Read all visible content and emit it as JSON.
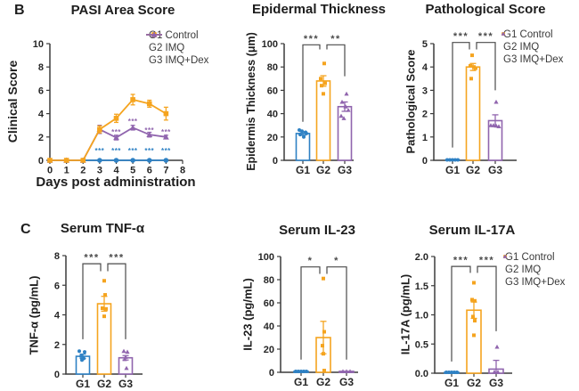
{
  "figure": {
    "background": "#ffffff",
    "panel_b_label": "B",
    "panel_c_label": "C"
  },
  "colors": {
    "g1": "#2E81C4",
    "g2": "#F5A41F",
    "g3": "#9065AE",
    "axis": "#3C3C3C",
    "text": "#262626",
    "bracket": "#4A4A4A"
  },
  "group_names": [
    "G1 Control",
    "G2 IMQ",
    "G3 IMQ+Dex"
  ],
  "chart_data": [
    {
      "id": "pasi_area_score",
      "type": "line",
      "title": "PASI Area Score",
      "xlabel": "Days post administration",
      "ylabel": "Clinical Score",
      "xlim": [
        0,
        8
      ],
      "xticks": [
        "0",
        "1",
        "2",
        "3",
        "4",
        "5",
        "6",
        "7",
        "8"
      ],
      "ylim": [
        0,
        10
      ],
      "yticks": [
        "0",
        "2",
        "4",
        "6",
        "8",
        "10"
      ],
      "legend_position": "top-right",
      "legend": [
        {
          "label": "G1 Control",
          "color": "g1",
          "marker": "circle"
        },
        {
          "label": "G2 IMQ",
          "color": "g2",
          "marker": "square"
        },
        {
          "label": "G3 IMQ+Dex",
          "color": "g3",
          "marker": "triangle"
        }
      ],
      "series": [
        {
          "name": "G1 Control",
          "color": "g1",
          "marker": "circle",
          "x": [
            0,
            1,
            2,
            3,
            4,
            5,
            6,
            7
          ],
          "y": [
            0,
            0,
            0,
            0,
            0,
            0,
            0,
            0
          ],
          "err": [
            0,
            0,
            0,
            0,
            0,
            0,
            0,
            0
          ]
        },
        {
          "name": "G3 IMQ+Dex",
          "color": "g3",
          "marker": "triangle",
          "x": [
            0,
            1,
            2,
            3,
            4,
            5,
            6,
            7
          ],
          "y": [
            0,
            0,
            0,
            2.65,
            1.95,
            2.8,
            2.2,
            2.0
          ],
          "err": [
            0,
            0,
            0,
            0.35,
            0.2,
            0.2,
            0.2,
            0.15
          ]
        },
        {
          "name": "G2 IMQ",
          "color": "g2",
          "marker": "square",
          "x": [
            0,
            1,
            2,
            3,
            4,
            5,
            6,
            7
          ],
          "y": [
            0,
            0,
            0,
            2.65,
            3.6,
            5.2,
            4.85,
            4.0
          ],
          "err": [
            0,
            0,
            0,
            0.3,
            0.35,
            0.45,
            0.3,
            0.55
          ]
        }
      ],
      "annotations": [
        {
          "text": "***",
          "color": "g3",
          "x": 4,
          "y": 2.45
        },
        {
          "text": "***",
          "color": "g3",
          "x": 5,
          "y": 3.35
        },
        {
          "text": "***",
          "color": "g3",
          "x": 6,
          "y": 2.6
        },
        {
          "text": "***",
          "color": "g3",
          "x": 7,
          "y": 2.45
        },
        {
          "text": "***",
          "color": "g1",
          "x": 3,
          "y": 0.85
        },
        {
          "text": "***",
          "color": "g1",
          "x": 4,
          "y": 0.85
        },
        {
          "text": "***",
          "color": "g1",
          "x": 5,
          "y": 0.85
        },
        {
          "text": "***",
          "color": "g1",
          "x": 6,
          "y": 0.85
        },
        {
          "text": "***",
          "color": "g1",
          "x": 7,
          "y": 0.85
        }
      ]
    },
    {
      "id": "epidermal_thickness",
      "type": "bar",
      "title": "Epidermal Thickness",
      "ylabel": "Epidermis Thickness (μm)",
      "ylim": [
        0,
        100
      ],
      "yticks": [
        "0",
        "20",
        "40",
        "60",
        "80",
        "100"
      ],
      "categories": [
        "G1",
        "G2",
        "G3"
      ],
      "bars": [
        {
          "group": "G1",
          "color": "g1",
          "marker": "circle",
          "value": 23,
          "err": 1.5,
          "points": [
            [
              -4,
              26
            ],
            [
              -1,
              25
            ],
            [
              3,
              24
            ],
            [
              -3,
              22
            ],
            [
              1,
              20
            ],
            [
              4,
              23
            ]
          ]
        },
        {
          "group": "G2",
          "color": "g2",
          "marker": "square",
          "value": 68,
          "err": 4.5,
          "points": [
            [
              1,
              83
            ],
            [
              -3,
              70
            ],
            [
              2,
              66
            ],
            [
              -2,
              64
            ],
            [
              0,
              57
            ]
          ]
        },
        {
          "group": "G3",
          "color": "g3",
          "marker": "triangle",
          "value": 46,
          "err": 4,
          "points": [
            [
              2,
              57
            ],
            [
              -3,
              50
            ],
            [
              1,
              46
            ],
            [
              4,
              43
            ],
            [
              -4,
              38
            ],
            [
              -1,
              36
            ]
          ]
        }
      ],
      "brackets": [
        {
          "x1": 0,
          "x2": 1,
          "top": 99,
          "y1": 33,
          "y2": 95,
          "label": "***"
        },
        {
          "x1": 1,
          "x2": 2,
          "top": 99,
          "y1": 95,
          "y2": 72,
          "label": "**"
        }
      ]
    },
    {
      "id": "pathological_score",
      "type": "bar",
      "title": "Pathological Score",
      "ylabel": "Pathological Score",
      "ylim": [
        0,
        5
      ],
      "yticks": [
        "0",
        "1",
        "2",
        "3",
        "4",
        "5"
      ],
      "categories": [
        "G1",
        "G2",
        "G3"
      ],
      "legend_position": "right",
      "legend": [
        {
          "label": "G1 Control",
          "color": "g1",
          "marker": "circle"
        },
        {
          "label": "G2 IMQ",
          "color": "g2",
          "marker": "square"
        },
        {
          "label": "G3 IMQ+Dex",
          "color": "g3",
          "marker": "triangle"
        }
      ],
      "bars": [
        {
          "group": "G1",
          "color": "g1",
          "marker": "circle",
          "value": 0.02,
          "err": 0,
          "points": [
            [
              -6,
              0.02
            ],
            [
              -3,
              0.02
            ],
            [
              0,
              0.02
            ],
            [
              3,
              0.02
            ],
            [
              6,
              0.02
            ]
          ]
        },
        {
          "group": "G2",
          "color": "g2",
          "marker": "square",
          "value": 4.0,
          "err": 0.15,
          "points": [
            [
              -1,
              4.5
            ],
            [
              -3,
              4.05
            ],
            [
              1,
              4.0
            ],
            [
              3,
              3.95
            ],
            [
              -2,
              3.5
            ]
          ]
        },
        {
          "group": "G3",
          "color": "g3",
          "marker": "triangle",
          "value": 1.7,
          "err": 0.25,
          "points": [
            [
              1,
              2.5
            ],
            [
              -5,
              1.5
            ],
            [
              -2,
              1.5
            ],
            [
              1,
              1.48
            ],
            [
              4,
              1.45
            ]
          ]
        }
      ],
      "brackets": [
        {
          "x1": 0,
          "x2": 1,
          "top": 5.05,
          "y1": 0.55,
          "y2": 4.75,
          "label": "***"
        },
        {
          "x1": 1,
          "x2": 2,
          "top": 5.05,
          "y1": 4.75,
          "y2": 3.0,
          "label": "***"
        }
      ]
    },
    {
      "id": "serum_tnf_alpha",
      "type": "bar",
      "title": "Serum TNF-α",
      "ylabel": "TNF-α (pg/mL)",
      "ylim": [
        0,
        8
      ],
      "yticks": [
        "0",
        "2",
        "4",
        "6",
        "8"
      ],
      "categories": [
        "G1",
        "G2",
        "G3"
      ],
      "bars": [
        {
          "group": "G1",
          "color": "g1",
          "marker": "circle",
          "value": 1.2,
          "err": 0.15,
          "points": [
            [
              -4,
              1.55
            ],
            [
              2,
              1.5
            ],
            [
              -2,
              1.2
            ],
            [
              1,
              1.05
            ],
            [
              -1,
              0.95
            ]
          ]
        },
        {
          "group": "G2",
          "color": "g2",
          "marker": "square",
          "value": 4.75,
          "err": 0.5,
          "points": [
            [
              0,
              6.3
            ],
            [
              1,
              5.35
            ],
            [
              -2,
              4.45
            ],
            [
              2,
              4.4
            ],
            [
              0,
              3.9
            ]
          ]
        },
        {
          "group": "G3",
          "color": "g3",
          "marker": "triangle",
          "value": 1.1,
          "err": 0.15,
          "points": [
            [
              -2,
              1.55
            ],
            [
              2,
              1.5
            ],
            [
              0,
              1.15
            ],
            [
              -1,
              1.0
            ],
            [
              1,
              0.4
            ]
          ]
        }
      ],
      "brackets": [
        {
          "x1": 0,
          "x2": 1,
          "top": 7.45,
          "y1": 2.35,
          "y2": 6.95,
          "label": "***"
        },
        {
          "x1": 1,
          "x2": 2,
          "top": 7.45,
          "y1": 6.95,
          "y2": 2.35,
          "label": "***"
        }
      ]
    },
    {
      "id": "serum_il23",
      "type": "bar",
      "title": "Serum IL-23",
      "ylabel": "IL-23 (pg/mL)",
      "ylim": [
        0,
        100
      ],
      "yticks": [
        "0",
        "20",
        "40",
        "60",
        "80",
        "100"
      ],
      "categories": [
        "G1",
        "G2",
        "G3"
      ],
      "bars": [
        {
          "group": "G1",
          "color": "g1",
          "marker": "circle",
          "value": 0.8,
          "err": 0,
          "points": [
            [
              -6,
              0.8
            ],
            [
              -3,
              0.8
            ],
            [
              0,
              0.8
            ],
            [
              3,
              0.8
            ],
            [
              6,
              0.8
            ]
          ]
        },
        {
          "group": "G2",
          "color": "g2",
          "marker": "square",
          "value": 30,
          "err": 14,
          "points": [
            [
              0,
              81
            ],
            [
              1,
              35
            ],
            [
              -1,
              23
            ],
            [
              0,
              16
            ],
            [
              1,
              1.5
            ]
          ]
        },
        {
          "group": "G3",
          "color": "g3",
          "marker": "triangle",
          "value": 0.8,
          "err": 0,
          "points": [
            [
              -4,
              0.8
            ],
            [
              0,
              0.8
            ],
            [
              4,
              0.8
            ]
          ]
        }
      ],
      "brackets": [
        {
          "x1": 0,
          "x2": 1,
          "top": 91,
          "y1": 11,
          "y2": 85,
          "label": "*"
        },
        {
          "x1": 1,
          "x2": 2,
          "top": 91,
          "y1": 85,
          "y2": 11,
          "label": "*"
        }
      ]
    },
    {
      "id": "serum_il17a",
      "type": "bar",
      "title": "Serum IL-17A",
      "ylabel": "IL-17A (pg/mL)",
      "ylim": [
        0,
        2.0
      ],
      "yticks": [
        "0.0",
        "0.5",
        "1.0",
        "1.5",
        "2.0"
      ],
      "categories": [
        "G1",
        "G2",
        "G3"
      ],
      "legend_position": "right",
      "legend": [
        {
          "label": "G1 Control",
          "color": "g1",
          "marker": "circle"
        },
        {
          "label": "G2 IMQ",
          "color": "g2",
          "marker": "square"
        },
        {
          "label": "G3 IMQ+Dex",
          "color": "g3",
          "marker": "triangle"
        }
      ],
      "bars": [
        {
          "group": "G1",
          "color": "g1",
          "marker": "circle",
          "value": 0.015,
          "err": 0,
          "points": [
            [
              -6,
              0.015
            ],
            [
              -3,
              0.015
            ],
            [
              0,
              0.015
            ],
            [
              3,
              0.015
            ],
            [
              6,
              0.015
            ]
          ]
        },
        {
          "group": "G2",
          "color": "g2",
          "marker": "square",
          "value": 1.08,
          "err": 0.14,
          "points": [
            [
              0,
              1.55
            ],
            [
              -2,
              1.26
            ],
            [
              1,
              1.24
            ],
            [
              -1,
              0.97
            ],
            [
              1,
              0.9
            ],
            [
              0,
              0.65
            ]
          ]
        },
        {
          "group": "G3",
          "color": "g3",
          "marker": "triangle",
          "value": 0.07,
          "err": 0.15,
          "points": [
            [
              1,
              0.45
            ],
            [
              -2,
              0.02
            ],
            [
              2,
              0.02
            ]
          ]
        }
      ],
      "brackets": [
        {
          "x1": 0,
          "x2": 1,
          "top": 1.83,
          "y1": 0.2,
          "y2": 1.72,
          "label": "***"
        },
        {
          "x1": 1,
          "x2": 2,
          "top": 1.83,
          "y1": 1.72,
          "y2": 0.72,
          "label": "***"
        }
      ]
    }
  ]
}
